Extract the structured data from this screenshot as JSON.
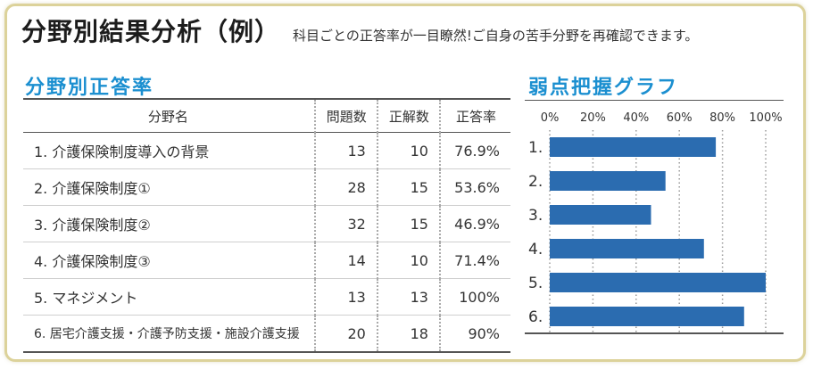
{
  "title": "分野別結果分析（例）",
  "subtitle": "科目ごとの正答率が一目瞭然!ご自身の苦手分野を再確認できます。",
  "table_section_title": "分野別正答率",
  "chart_section_title": "弱点把握グラフ",
  "table": {
    "headers": [
      "分野名",
      "問題数",
      "正解数",
      "正答率"
    ],
    "rows": [
      [
        "1. 介護保険制度導入の背景",
        "13",
        "10",
        "76.9%"
      ],
      [
        "2. 介護保険制度①",
        "28",
        "15",
        "53.6%"
      ],
      [
        "3. 介護保険制度②",
        "32",
        "15",
        "46.9%"
      ],
      [
        "4. 介護保険制度③",
        "14",
        "10",
        "71.4%"
      ],
      [
        "5. マネジメント",
        "13",
        "13",
        "100%"
      ],
      [
        "6. 居宅介護支援・介護予防支援・施設介護支援",
        "20",
        "18",
        "90%"
      ]
    ]
  },
  "chart_data": {
    "type": "bar",
    "orientation": "horizontal",
    "categories": [
      "1.",
      "2.",
      "3.",
      "4.",
      "5.",
      "6."
    ],
    "values": [
      76.9,
      53.6,
      46.9,
      71.4,
      100,
      90
    ],
    "xlim": [
      0,
      100
    ],
    "x_ticks": [
      "0%",
      "20%",
      "40%",
      "60%",
      "80%",
      "100%"
    ],
    "grid": "vertical dotted",
    "bar_color": "#2b6cb0"
  }
}
